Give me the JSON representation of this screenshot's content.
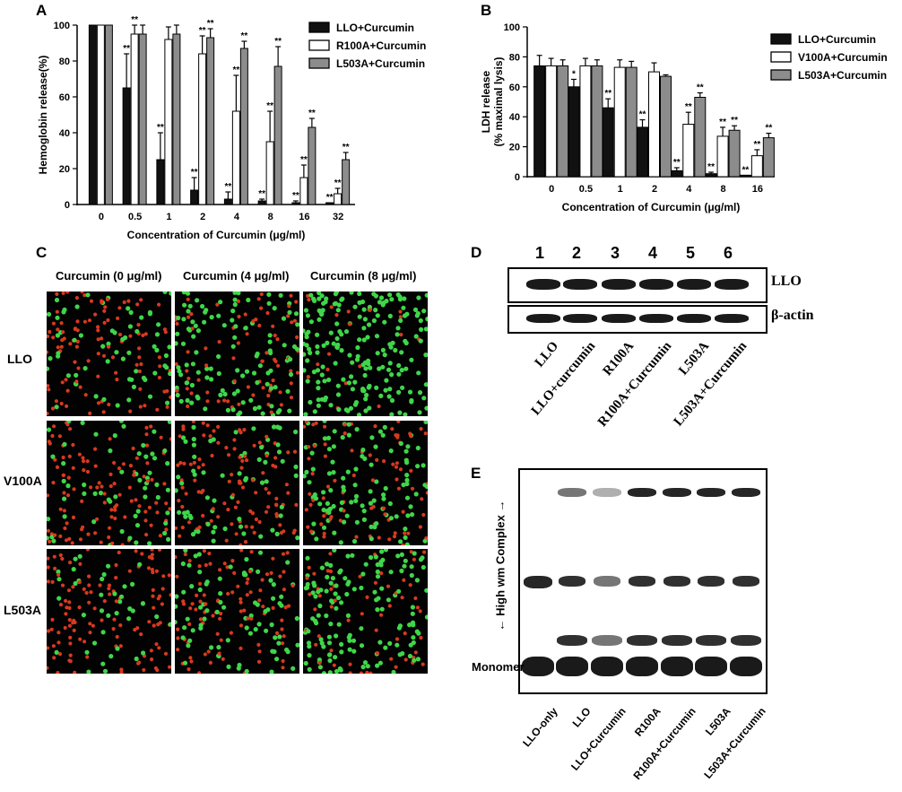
{
  "panels": {
    "A": "A",
    "B": "B",
    "C": "C",
    "D": "D",
    "E": "E"
  },
  "chart_data": [
    {
      "type": "bar",
      "ylabel": "Hemoglobin release(%)",
      "xlabel": "Concentration of Curcumin (μg/ml)",
      "categories": [
        "0",
        "0.5",
        "1",
        "2",
        "4",
        "8",
        "16",
        "32"
      ],
      "ylim": [
        0,
        100
      ],
      "yticks": [
        0,
        20,
        40,
        60,
        80,
        100
      ],
      "legend_position": "top-right",
      "series": [
        {
          "name": "LLO+Curcumin",
          "color": "#111111",
          "values": [
            100,
            65,
            25,
            8,
            3,
            2,
            1,
            1
          ],
          "err": [
            0,
            19,
            15,
            7,
            4,
            1,
            1,
            0
          ]
        },
        {
          "name": "R100A+Curcumin",
          "color": "#ffffff",
          "values": [
            100,
            95,
            92,
            84,
            52,
            35,
            15,
            6
          ],
          "err": [
            0,
            5,
            7,
            10,
            20,
            17,
            7,
            3
          ]
        },
        {
          "name": "L503A+Curcumin",
          "color": "#8c8c8c",
          "values": [
            100,
            95,
            95,
            93,
            87,
            77,
            43,
            25
          ],
          "err": [
            0,
            5,
            5,
            5,
            4,
            11,
            5,
            4
          ]
        }
      ],
      "sig_labels": [
        [
          "",
          "**",
          "**",
          "**",
          "**",
          "**",
          "**",
          "**"
        ],
        [
          "",
          "**",
          "",
          "**",
          "**",
          "**",
          "**",
          "**"
        ],
        [
          "",
          "",
          "",
          "**",
          "**",
          "**",
          "**",
          "**"
        ]
      ]
    },
    {
      "type": "bar",
      "ylabel": "LDH release",
      "ylabel2": "(% maximal lysis)",
      "xlabel": "Concentration of Curcumin (μg/ml)",
      "categories": [
        "0",
        "0.5",
        "1",
        "2",
        "4",
        "8",
        "16"
      ],
      "ylim": [
        0,
        100
      ],
      "yticks": [
        0,
        20,
        40,
        60,
        80,
        100
      ],
      "legend_position": "top-right",
      "series": [
        {
          "name": "LLO+Curcumin",
          "color": "#111111",
          "values": [
            74,
            60,
            46,
            33,
            4,
            2,
            1
          ],
          "err": [
            7,
            5,
            6,
            5,
            2,
            1,
            0
          ]
        },
        {
          "name": "V100A+Curcumin",
          "color": "#ffffff",
          "values": [
            74,
            74,
            73,
            70,
            35,
            27,
            14
          ],
          "err": [
            5,
            5,
            5,
            6,
            8,
            6,
            4
          ]
        },
        {
          "name": "L503A+Curcumin",
          "color": "#8c8c8c",
          "values": [
            74,
            74,
            73,
            67,
            53,
            31,
            26
          ],
          "err": [
            4,
            4,
            4,
            1,
            3,
            3,
            3
          ]
        }
      ],
      "sig_labels": [
        [
          "",
          "*",
          "**",
          "**",
          "**",
          "**",
          "**"
        ],
        [
          "",
          "",
          "",
          "",
          "**",
          "**",
          "**"
        ],
        [
          "",
          "",
          "",
          "",
          "**",
          "**",
          "**"
        ]
      ]
    }
  ],
  "micrographs": {
    "columns": [
      "Curcumin (0 μg/ml)",
      "Curcumin (4 μg/ml)",
      "Curcumin (8 μg/ml)"
    ],
    "rows": [
      "LLO",
      "V100A",
      "L503A"
    ],
    "green_fraction": [
      [
        0.35,
        0.6,
        0.92
      ],
      [
        0.35,
        0.4,
        0.6
      ],
      [
        0.25,
        0.45,
        0.7
      ]
    ]
  },
  "western": {
    "lanes": [
      "1",
      "2",
      "3",
      "4",
      "5",
      "6"
    ],
    "bands": [
      "LLO",
      "β-actin"
    ],
    "lane_labels": [
      "LLO",
      "LLO+curcumin",
      "R100A",
      "R100A+Curcumin",
      "L503A",
      "L503A+Curcumin"
    ]
  },
  "native_gel": {
    "side_label": "← High wm Complex →",
    "monomer_label": "Monomer",
    "lane_labels": [
      "LLO-only",
      "LLO",
      "LLO+Curcumin",
      "R100A",
      "R100A+Curcumin",
      "L503A",
      "L503A+Curcumin"
    ]
  }
}
